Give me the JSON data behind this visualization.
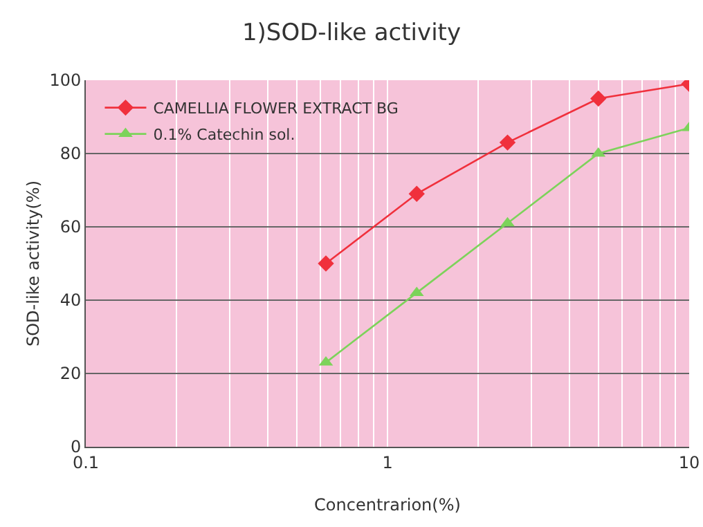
{
  "chart_data": {
    "type": "line",
    "title": "1)SOD-like activity",
    "xlabel": "Concentrarion(%)",
    "ylabel": "SOD-like activity(%)",
    "x": [
      0.625,
      1.25,
      2.5,
      5,
      10
    ],
    "series": [
      {
        "name": "CAMELLIA FLOWER EXTRACT BG",
        "color": "#f0303c",
        "marker": "diamond",
        "values": [
          50,
          69,
          83,
          95,
          99
        ]
      },
      {
        "name": "0.1% Catechin sol.",
        "color": "#7cd35a",
        "marker": "triangle",
        "values": [
          23,
          42,
          61,
          80,
          87
        ]
      }
    ],
    "log": "x",
    "xlim": [
      0.1,
      10
    ],
    "ylim": [
      0,
      100
    ],
    "xticks": [
      0.1,
      {
        "value": 0.2,
        "label": null
      },
      {
        "value": 0.3,
        "label": null
      },
      {
        "value": 0.4,
        "label": null
      },
      {
        "value": 0.5,
        "label": null
      },
      {
        "value": 0.6,
        "label": null
      },
      {
        "value": 0.7,
        "label": null
      },
      {
        "value": 0.8,
        "label": null
      },
      {
        "value": 0.9,
        "label": null
      },
      1,
      {
        "value": 2,
        "label": null
      },
      {
        "value": 3,
        "label": null
      },
      {
        "value": 4,
        "label": null
      },
      {
        "value": 5,
        "label": null
      },
      {
        "value": 6,
        "label": null
      },
      {
        "value": 7,
        "label": null
      },
      {
        "value": 8,
        "label": null
      },
      {
        "value": 9,
        "label": null
      },
      10
    ],
    "yticks": [
      0,
      20,
      40,
      60,
      80,
      100
    ],
    "grid": true,
    "legend": "top left"
  }
}
